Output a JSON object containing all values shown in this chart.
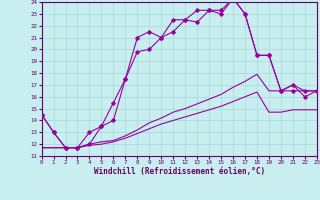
{
  "xlabel": "Windchill (Refroidissement éolien,°C)",
  "background_color": "#c8eef0",
  "grid_color": "#aadddd",
  "line_color": "#990099",
  "xlim": [
    0,
    23
  ],
  "ylim": [
    11,
    24
  ],
  "yticks": [
    11,
    12,
    13,
    14,
    15,
    16,
    17,
    18,
    19,
    20,
    21,
    22,
    23,
    24
  ],
  "xticks": [
    0,
    1,
    2,
    3,
    4,
    5,
    6,
    7,
    8,
    9,
    10,
    11,
    12,
    13,
    14,
    15,
    16,
    17,
    18,
    19,
    20,
    21,
    22,
    23
  ],
  "series1_x": [
    0,
    1,
    2,
    3,
    4,
    5,
    6,
    7,
    8,
    9,
    10,
    11,
    12,
    13,
    14,
    15,
    16,
    17,
    18,
    19,
    20,
    21,
    22,
    23
  ],
  "series1_y": [
    14.5,
    13.0,
    11.7,
    11.7,
    12.0,
    13.5,
    15.5,
    17.5,
    19.8,
    20.0,
    21.0,
    21.5,
    22.5,
    22.3,
    23.3,
    23.3,
    24.3,
    23.0,
    19.5,
    19.5,
    16.5,
    16.5,
    16.5,
    16.5
  ],
  "series2_x": [
    0,
    1,
    2,
    3,
    4,
    5,
    6,
    7,
    8,
    9,
    10,
    11,
    12,
    13,
    14,
    15,
    16,
    17,
    18,
    19,
    20,
    21,
    22,
    23
  ],
  "series2_y": [
    14.5,
    13.0,
    11.7,
    11.7,
    13.0,
    13.5,
    14.0,
    17.5,
    21.0,
    21.5,
    21.0,
    22.5,
    22.5,
    23.3,
    23.3,
    23.0,
    24.3,
    23.0,
    19.5,
    19.5,
    16.5,
    17.0,
    16.0,
    16.5
  ],
  "series3_x": [
    0,
    1,
    2,
    3,
    4,
    5,
    6,
    7,
    8,
    9,
    10,
    11,
    12,
    13,
    14,
    15,
    16,
    17,
    18,
    19,
    20,
    21,
    22,
    23
  ],
  "series3_y": [
    11.7,
    11.7,
    11.7,
    11.7,
    12.0,
    12.2,
    12.3,
    12.7,
    13.2,
    13.8,
    14.2,
    14.7,
    15.0,
    15.4,
    15.8,
    16.2,
    16.8,
    17.3,
    17.9,
    16.5,
    16.5,
    17.0,
    16.5,
    16.5
  ],
  "series4_x": [
    0,
    1,
    2,
    3,
    4,
    5,
    6,
    7,
    8,
    9,
    10,
    11,
    12,
    13,
    14,
    15,
    16,
    17,
    18,
    19,
    20,
    21,
    22,
    23
  ],
  "series4_y": [
    11.7,
    11.7,
    11.7,
    11.7,
    11.9,
    12.0,
    12.2,
    12.5,
    12.9,
    13.3,
    13.7,
    14.0,
    14.3,
    14.6,
    14.9,
    15.2,
    15.6,
    16.0,
    16.4,
    14.7,
    14.7,
    14.9,
    14.9,
    14.9
  ]
}
